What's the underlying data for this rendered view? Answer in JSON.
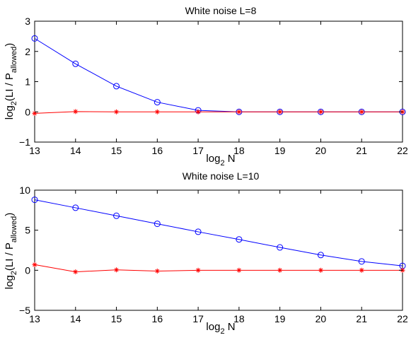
{
  "chart_data": [
    {
      "type": "line",
      "title": "White noise L=8",
      "xlabel": {
        "base": "log",
        "sub": "2",
        "rest": " N"
      },
      "ylabel": {
        "p1": "log",
        "s1": "2",
        "p2": "(LI / P",
        "s2": "allowed",
        "p3": ")"
      },
      "xlim": [
        13,
        22
      ],
      "ylim": [
        -1,
        3
      ],
      "xticks": [
        "13",
        "14",
        "15",
        "16",
        "17",
        "18",
        "19",
        "20",
        "21",
        "22"
      ],
      "yticks": [
        "−1",
        "0",
        "1",
        "2",
        "3"
      ],
      "x": [
        13,
        14,
        15,
        16,
        17,
        18,
        19,
        20,
        21,
        22
      ],
      "series": [
        {
          "marker": "circle",
          "color": "#0000ff",
          "values": [
            2.43,
            1.59,
            0.85,
            0.32,
            0.05,
            0.0,
            0.0,
            0.0,
            0.0,
            0.0
          ]
        },
        {
          "marker": "star",
          "color": "#ff0000",
          "values": [
            -0.05,
            0.01,
            0.0,
            0.0,
            0.0,
            0.0,
            0.0,
            0.0,
            0.0,
            0.0
          ]
        }
      ]
    },
    {
      "type": "line",
      "title": "White noise L=10",
      "xlabel": {
        "base": "log",
        "sub": "2",
        "rest": " N"
      },
      "ylabel": {
        "p1": "log",
        "s1": "2",
        "p2": "(LI / P",
        "s2": "allowed",
        "p3": ")"
      },
      "xlim": [
        13,
        22
      ],
      "ylim": [
        -5,
        10
      ],
      "xticks": [
        "13",
        "14",
        "15",
        "16",
        "17",
        "18",
        "19",
        "20",
        "21",
        "22"
      ],
      "yticks": [
        "−5",
        "0",
        "5",
        "10"
      ],
      "x": [
        13,
        14,
        15,
        16,
        17,
        18,
        19,
        20,
        21,
        22
      ],
      "series": [
        {
          "marker": "circle",
          "color": "#0000ff",
          "values": [
            8.8,
            7.8,
            6.8,
            5.8,
            4.8,
            3.85,
            2.85,
            1.9,
            1.1,
            0.55
          ]
        },
        {
          "marker": "star",
          "color": "#ff0000",
          "values": [
            0.7,
            -0.2,
            0.05,
            -0.1,
            0.0,
            0.0,
            0.0,
            0.0,
            0.0,
            0.0
          ]
        }
      ]
    }
  ]
}
